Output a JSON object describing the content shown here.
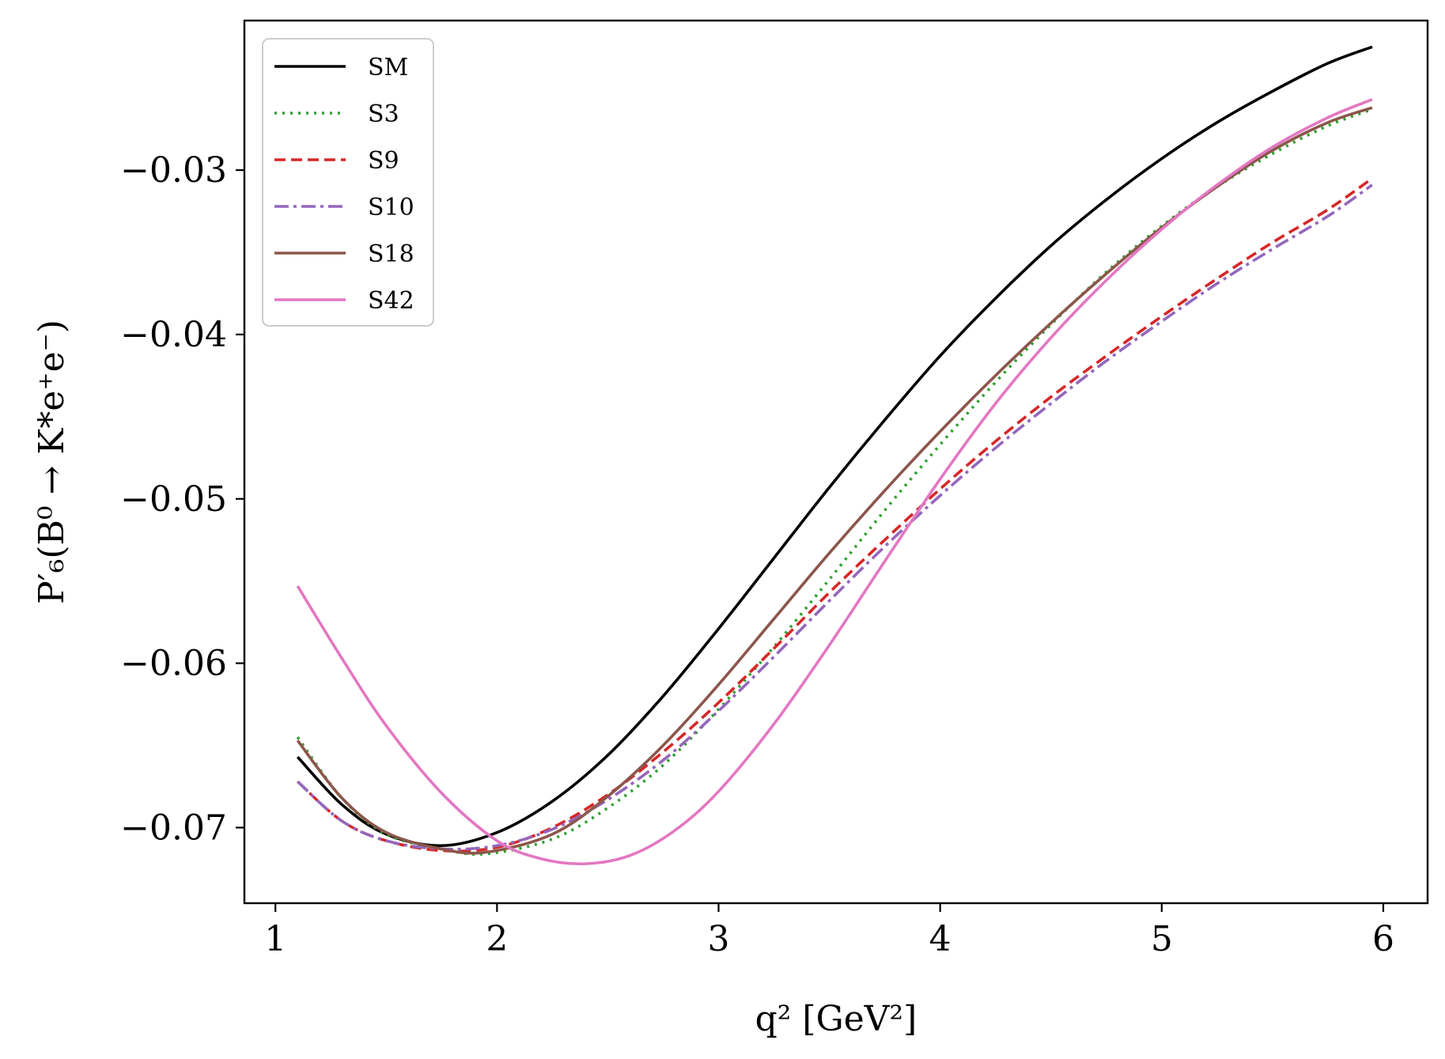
{
  "chart_data": {
    "type": "line",
    "title": "",
    "xlabel": "q² [GeV²]",
    "ylabel": "P′₆(B⁰ → K*e⁺e⁻)",
    "xlim": [
      0.86,
      6.2
    ],
    "ylim": [
      -0.0746,
      -0.0209
    ],
    "xticks": [
      1,
      2,
      3,
      4,
      5,
      6
    ],
    "xtick_labels": [
      "1",
      "2",
      "3",
      "4",
      "5",
      "6"
    ],
    "yticks": [
      -0.07,
      -0.06,
      -0.05,
      -0.04,
      -0.03
    ],
    "ytick_labels": [
      "−0.07",
      "−0.06",
      "−0.05",
      "−0.04",
      "−0.03"
    ],
    "grid": false,
    "legend_position": "top-left",
    "series": [
      {
        "name": "SM",
        "color": "#000000",
        "dash": "solid",
        "x": [
          1.1,
          1.3,
          1.5,
          1.75,
          2.0,
          2.25,
          2.5,
          2.75,
          3.0,
          3.25,
          3.5,
          3.75,
          4.0,
          4.25,
          4.5,
          4.75,
          5.0,
          5.25,
          5.5,
          5.75,
          5.95
        ],
        "y": [
          -0.0657,
          -0.0686,
          -0.0704,
          -0.0711,
          -0.0703,
          -0.0684,
          -0.0656,
          -0.062,
          -0.0579,
          -0.0536,
          -0.0493,
          -0.0452,
          -0.0413,
          -0.0378,
          -0.0346,
          -0.0318,
          -0.0293,
          -0.0271,
          -0.0252,
          -0.0235,
          -0.0225
        ]
      },
      {
        "name": "S3",
        "color": "#2ca02c",
        "dash": "dotted",
        "x": [
          1.1,
          1.3,
          1.5,
          1.75,
          1.95,
          2.25,
          2.5,
          2.75,
          3.0,
          3.25,
          3.5,
          3.75,
          4.0,
          4.25,
          4.5,
          4.75,
          5.0,
          5.25,
          5.5,
          5.75,
          5.95
        ],
        "y": [
          -0.0645,
          -0.0682,
          -0.0704,
          -0.0713,
          -0.0716,
          -0.0707,
          -0.0688,
          -0.0662,
          -0.0628,
          -0.059,
          -0.0549,
          -0.0507,
          -0.0467,
          -0.0429,
          -0.0394,
          -0.0362,
          -0.0334,
          -0.031,
          -0.029,
          -0.0273,
          -0.0263
        ]
      },
      {
        "name": "S9",
        "color": "#d62728",
        "dash": "dashed",
        "x": [
          1.1,
          1.3,
          1.5,
          1.75,
          2.0,
          2.25,
          2.5,
          2.75,
          3.0,
          3.25,
          3.5,
          3.75,
          4.0,
          4.25,
          4.5,
          4.75,
          5.0,
          5.25,
          5.5,
          5.75,
          5.95
        ],
        "y": [
          -0.0672,
          -0.0696,
          -0.0708,
          -0.0714,
          -0.0712,
          -0.07,
          -0.068,
          -0.0654,
          -0.0624,
          -0.0591,
          -0.0557,
          -0.0525,
          -0.0494,
          -0.0465,
          -0.0438,
          -0.0413,
          -0.0389,
          -0.0366,
          -0.0344,
          -0.0324,
          -0.0305
        ]
      },
      {
        "name": "S10",
        "color": "#9467bd",
        "dash": "dashdot",
        "x": [
          1.1,
          1.3,
          1.5,
          1.75,
          2.0,
          2.25,
          2.5,
          2.75,
          3.0,
          3.25,
          3.5,
          3.75,
          4.0,
          4.25,
          4.5,
          4.75,
          5.0,
          5.25,
          5.5,
          5.75,
          5.95
        ],
        "y": [
          -0.0672,
          -0.0696,
          -0.0708,
          -0.0713,
          -0.0711,
          -0.0701,
          -0.0683,
          -0.0659,
          -0.0629,
          -0.0596,
          -0.0562,
          -0.0529,
          -0.0498,
          -0.0469,
          -0.0442,
          -0.0416,
          -0.0392,
          -0.0369,
          -0.0348,
          -0.0328,
          -0.0309
        ]
      },
      {
        "name": "S18",
        "color": "#8c564b",
        "dash": "solid",
        "x": [
          1.1,
          1.3,
          1.5,
          1.75,
          1.95,
          2.25,
          2.5,
          2.75,
          3.0,
          3.25,
          3.5,
          3.75,
          4.0,
          4.25,
          4.5,
          4.75,
          5.0,
          5.25,
          5.5,
          5.75,
          5.95
        ],
        "y": [
          -0.0647,
          -0.0682,
          -0.0703,
          -0.0713,
          -0.0715,
          -0.0704,
          -0.0681,
          -0.065,
          -0.0613,
          -0.0573,
          -0.0533,
          -0.0495,
          -0.0459,
          -0.0425,
          -0.0393,
          -0.0363,
          -0.0335,
          -0.031,
          -0.0288,
          -0.0271,
          -0.0262
        ]
      },
      {
        "name": "S42",
        "color": "#e377c2",
        "dash": "solid",
        "x": [
          1.1,
          1.3,
          1.5,
          1.75,
          2.0,
          2.2,
          2.4,
          2.6,
          2.8,
          3.0,
          3.25,
          3.5,
          3.75,
          4.0,
          4.25,
          4.5,
          4.75,
          5.0,
          5.25,
          5.5,
          5.75,
          5.95
        ],
        "y": [
          -0.0553,
          -0.0597,
          -0.0638,
          -0.0679,
          -0.0708,
          -0.0719,
          -0.0722,
          -0.0717,
          -0.0702,
          -0.0678,
          -0.0637,
          -0.0589,
          -0.0538,
          -0.0488,
          -0.0442,
          -0.0402,
          -0.0367,
          -0.0336,
          -0.0309,
          -0.0286,
          -0.0268,
          -0.0257
        ]
      }
    ]
  }
}
